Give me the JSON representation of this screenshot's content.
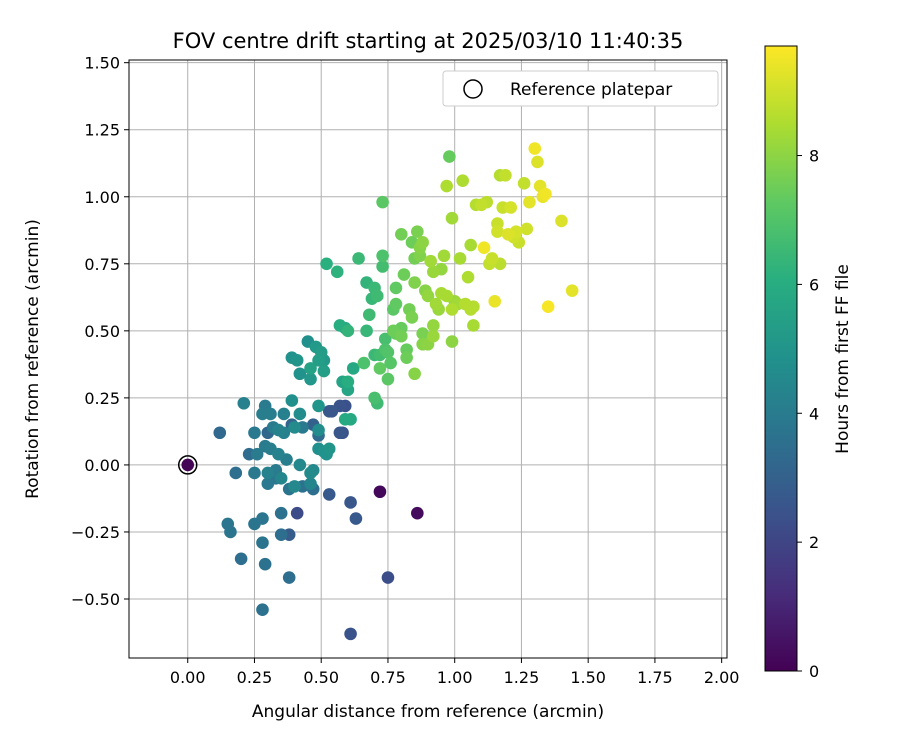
{
  "chart_data": {
    "type": "scatter",
    "title": "FOV centre drift starting at 2025/03/10 11:40:35",
    "xlabel": "Angular distance from reference (arcmin)",
    "ylabel": "Rotation from reference (arcmin)",
    "xlim": [
      -0.22,
      2.02
    ],
    "ylim": [
      -0.72,
      1.51
    ],
    "xticks": [
      "0.00",
      "0.25",
      "0.50",
      "0.75",
      "1.00",
      "1.25",
      "1.50",
      "1.75",
      "2.00"
    ],
    "yticks": [
      "−0.50",
      "−0.25",
      "0.00",
      "0.25",
      "0.50",
      "0.75",
      "1.00",
      "1.25",
      "1.50"
    ],
    "xtick_values": [
      0,
      0.25,
      0.5,
      0.75,
      1.0,
      1.25,
      1.5,
      1.75,
      2.0
    ],
    "ytick_values": [
      -0.5,
      -0.25,
      0,
      0.25,
      0.5,
      0.75,
      1.0,
      1.25,
      1.5
    ],
    "grid": true,
    "legend": {
      "position": "top-right",
      "label": "Reference platepar"
    },
    "colorbar": {
      "label": "Hours from first FF file",
      "min": 0,
      "max": 9.7,
      "ticks": [
        0,
        2,
        4,
        6,
        8
      ],
      "tick_labels": [
        "0",
        "2",
        "4",
        "6",
        "8"
      ],
      "colormap": "viridis"
    },
    "reference": {
      "x": 0.0,
      "y": 0.0
    },
    "series": [
      {
        "points": [
          [
            0.0,
            0.0,
            0.1
          ],
          [
            0.72,
            -0.1,
            0.2
          ],
          [
            0.86,
            -0.18,
            0.3
          ],
          [
            0.61,
            -0.63,
            2.5
          ],
          [
            0.75,
            -0.42,
            2.3
          ],
          [
            0.63,
            -0.2,
            2.7
          ],
          [
            0.61,
            -0.14,
            2.6
          ],
          [
            0.53,
            -0.11,
            2.7
          ],
          [
            0.41,
            -0.18,
            2.2
          ],
          [
            0.38,
            -0.26,
            2.8
          ],
          [
            0.59,
            0.22,
            2.4
          ],
          [
            0.58,
            0.12,
            2.5
          ],
          [
            0.53,
            0.2,
            2.6
          ],
          [
            0.47,
            0.15,
            3.0
          ],
          [
            0.39,
            0.15,
            3.1
          ],
          [
            0.3,
            0.12,
            3.2
          ],
          [
            0.23,
            0.04,
            3.4
          ],
          [
            0.18,
            -0.03,
            3.5
          ],
          [
            0.12,
            0.12,
            3.3
          ],
          [
            0.47,
            -0.09,
            3.5
          ],
          [
            0.43,
            -0.08,
            3.6
          ],
          [
            0.38,
            -0.09,
            3.7
          ],
          [
            0.35,
            -0.18,
            3.6
          ],
          [
            0.35,
            -0.26,
            3.5
          ],
          [
            0.33,
            -0.05,
            3.8
          ],
          [
            0.3,
            -0.07,
            3.9
          ],
          [
            0.28,
            -0.2,
            3.8
          ],
          [
            0.25,
            -0.22,
            3.7
          ],
          [
            0.28,
            -0.29,
            3.7
          ],
          [
            0.29,
            -0.37,
            3.6
          ],
          [
            0.38,
            -0.42,
            3.5
          ],
          [
            0.2,
            -0.35,
            3.5
          ],
          [
            0.16,
            -0.25,
            3.7
          ],
          [
            0.15,
            -0.22,
            3.8
          ],
          [
            0.28,
            -0.54,
            3.6
          ],
          [
            0.25,
            -0.03,
            3.9
          ],
          [
            0.26,
            0.04,
            4.0
          ],
          [
            0.29,
            0.07,
            4.0
          ],
          [
            0.31,
            0.06,
            4.1
          ],
          [
            0.25,
            0.12,
            3.9
          ],
          [
            0.28,
            0.19,
            4.1
          ],
          [
            0.29,
            0.22,
            4.0
          ],
          [
            0.31,
            0.19,
            4.1
          ],
          [
            0.21,
            0.23,
            4.2
          ],
          [
            0.34,
            0.13,
            4.3
          ],
          [
            0.36,
            0.12,
            4.2
          ],
          [
            0.34,
            0.04,
            4.3
          ],
          [
            0.35,
            -0.05,
            4.4
          ],
          [
            0.3,
            -0.03,
            4.3
          ],
          [
            0.4,
            -0.08,
            4.5
          ],
          [
            0.46,
            -0.07,
            4.4
          ],
          [
            0.47,
            -0.02,
            4.5
          ],
          [
            0.46,
            -0.03,
            4.6
          ],
          [
            0.42,
            0.19,
            4.7
          ],
          [
            0.4,
            0.14,
            4.6
          ],
          [
            0.49,
            0.13,
            4.7
          ],
          [
            0.49,
            0.06,
            4.8
          ],
          [
            0.51,
            0.05,
            4.9
          ],
          [
            0.52,
            0.04,
            4.9
          ],
          [
            0.53,
            0.06,
            5.0
          ],
          [
            0.49,
            0.22,
            5.0
          ],
          [
            0.39,
            0.24,
            4.8
          ],
          [
            0.42,
            0.34,
            4.9
          ],
          [
            0.45,
            0.46,
            4.8
          ],
          [
            0.39,
            0.4,
            4.9
          ],
          [
            0.41,
            0.39,
            5.0
          ],
          [
            0.46,
            0.32,
            5.1
          ],
          [
            0.48,
            0.44,
            5.2
          ],
          [
            0.5,
            0.42,
            5.3
          ],
          [
            0.51,
            0.39,
            5.2
          ],
          [
            0.49,
            0.39,
            5.4
          ],
          [
            0.51,
            0.35,
            5.4
          ],
          [
            0.46,
            0.36,
            5.5
          ],
          [
            0.58,
            0.31,
            5.6
          ],
          [
            0.6,
            0.28,
            5.7
          ],
          [
            0.62,
            0.36,
            5.8
          ],
          [
            0.61,
            0.17,
            5.8
          ],
          [
            0.59,
            0.17,
            5.9
          ],
          [
            0.59,
            0.51,
            5.8
          ],
          [
            0.57,
            0.52,
            6.0
          ],
          [
            0.52,
            0.75,
            6.1
          ],
          [
            0.56,
            0.72,
            6.2
          ],
          [
            0.6,
            0.5,
            6.3
          ],
          [
            0.64,
            0.77,
            6.5
          ],
          [
            0.67,
            0.5,
            6.4
          ],
          [
            0.68,
            0.56,
            6.6
          ],
          [
            0.67,
            0.68,
            6.3
          ],
          [
            0.69,
            0.62,
            6.4
          ],
          [
            0.7,
            0.66,
            6.5
          ],
          [
            0.71,
            0.63,
            6.6
          ],
          [
            0.72,
            0.41,
            6.7
          ],
          [
            0.71,
            0.23,
            6.6
          ],
          [
            0.7,
            0.25,
            6.8
          ],
          [
            0.73,
            0.74,
            6.7
          ],
          [
            0.73,
            0.78,
            6.9
          ],
          [
            0.74,
            0.47,
            6.8
          ],
          [
            0.74,
            0.43,
            6.9
          ],
          [
            0.75,
            0.42,
            7.0
          ],
          [
            0.76,
            0.38,
            7.1
          ],
          [
            0.75,
            0.32,
            7.2
          ],
          [
            0.73,
            0.98,
            7.2
          ],
          [
            0.77,
            0.58,
            7.2
          ],
          [
            0.78,
            0.6,
            7.3
          ],
          [
            0.78,
            0.66,
            7.3
          ],
          [
            0.78,
            0.49,
            7.4
          ],
          [
            0.77,
            0.5,
            7.5
          ],
          [
            0.8,
            0.51,
            7.4
          ],
          [
            0.8,
            0.48,
            7.6
          ],
          [
            0.82,
            0.4,
            7.5
          ],
          [
            0.82,
            0.43,
            7.4
          ],
          [
            0.83,
            0.58,
            7.6
          ],
          [
            0.84,
            0.55,
            7.7
          ],
          [
            0.85,
            0.77,
            7.6
          ],
          [
            0.84,
            0.83,
            7.5
          ],
          [
            0.85,
            0.68,
            7.8
          ],
          [
            0.86,
            0.87,
            7.7
          ],
          [
            0.87,
            0.78,
            7.8
          ],
          [
            0.88,
            0.45,
            7.9
          ],
          [
            0.88,
            0.83,
            8.0
          ],
          [
            0.89,
            0.65,
            7.9
          ],
          [
            0.9,
            0.63,
            8.1
          ],
          [
            0.9,
            0.45,
            8.0
          ],
          [
            0.92,
            0.48,
            8.2
          ],
          [
            0.92,
            0.52,
            8.1
          ],
          [
            0.93,
            0.6,
            8.3
          ],
          [
            0.94,
            0.58,
            8.2
          ],
          [
            0.95,
            0.64,
            8.4
          ],
          [
            0.96,
            0.78,
            8.3
          ],
          [
            0.97,
            0.63,
            8.4
          ],
          [
            0.97,
            1.04,
            8.5
          ],
          [
            0.98,
            1.15,
            7.4
          ],
          [
            0.99,
            0.92,
            8.3
          ],
          [
            1.0,
            0.61,
            8.2
          ],
          [
            0.99,
            0.46,
            8.0
          ],
          [
            1.01,
            0.6,
            8.3
          ],
          [
            1.02,
            0.77,
            8.4
          ],
          [
            1.03,
            1.06,
            8.5
          ],
          [
            1.04,
            0.6,
            8.6
          ],
          [
            1.05,
            0.7,
            8.5
          ],
          [
            1.06,
            0.82,
            8.4
          ],
          [
            1.07,
            0.59,
            8.6
          ],
          [
            1.07,
            0.52,
            8.4
          ],
          [
            1.08,
            0.97,
            8.6
          ],
          [
            1.1,
            0.97,
            8.8
          ],
          [
            1.11,
            0.81,
            9.5
          ],
          [
            1.12,
            0.98,
            8.7
          ],
          [
            1.13,
            0.75,
            8.8
          ],
          [
            1.14,
            0.77,
            8.9
          ],
          [
            1.15,
            0.61,
            9.4
          ],
          [
            1.16,
            0.9,
            8.9
          ],
          [
            1.16,
            0.87,
            9.0
          ],
          [
            1.17,
            0.75,
            8.7
          ],
          [
            1.17,
            1.08,
            8.6
          ],
          [
            1.18,
            0.96,
            8.9
          ],
          [
            1.19,
            1.08,
            8.8
          ],
          [
            1.2,
            0.86,
            9.2
          ],
          [
            1.21,
            0.96,
            9.1
          ],
          [
            1.22,
            0.85,
            9.0
          ],
          [
            1.23,
            0.87,
            9.1
          ],
          [
            1.24,
            0.83,
            8.9
          ],
          [
            1.26,
            1.05,
            8.8
          ],
          [
            1.27,
            0.88,
            9.0
          ],
          [
            1.28,
            0.98,
            9.3
          ],
          [
            1.3,
            1.18,
            9.5
          ],
          [
            1.31,
            1.13,
            9.2
          ],
          [
            1.32,
            1.04,
            9.3
          ],
          [
            1.33,
            1.0,
            9.4
          ],
          [
            1.34,
            1.01,
            9.5
          ],
          [
            1.35,
            0.59,
            9.6
          ],
          [
            1.4,
            0.91,
            9.2
          ],
          [
            1.44,
            0.65,
            9.3
          ],
          [
            0.7,
            0.41,
            6.5
          ],
          [
            0.8,
            0.86,
            7.6
          ],
          [
            0.87,
            0.81,
            7.9
          ],
          [
            0.95,
            0.73,
            8.1
          ],
          [
            0.92,
            0.72,
            8.2
          ],
          [
            0.91,
            0.76,
            8.3
          ],
          [
            0.99,
            0.58,
            8.5
          ],
          [
            1.06,
            0.58,
            8.6
          ],
          [
            0.88,
            0.49,
            7.7
          ],
          [
            0.85,
            0.34,
            7.9
          ],
          [
            0.81,
            0.71,
            7.5
          ],
          [
            0.72,
            0.36,
            7.3
          ],
          [
            0.66,
            0.38,
            6.9
          ],
          [
            0.6,
            0.31,
            6.0
          ],
          [
            0.54,
            0.2,
            2.6
          ],
          [
            0.57,
            0.22,
            2.5
          ],
          [
            0.57,
            0.12,
            2.6
          ],
          [
            0.49,
            0.11,
            3.4
          ],
          [
            0.43,
            0.14,
            3.9
          ],
          [
            0.36,
            0.19,
            4.2
          ],
          [
            0.32,
            0.14,
            4.0
          ],
          [
            0.37,
            0.02,
            4.1
          ],
          [
            0.33,
            -0.02,
            4.0
          ],
          [
            0.42,
            0.0,
            4.5
          ]
        ]
      }
    ]
  }
}
